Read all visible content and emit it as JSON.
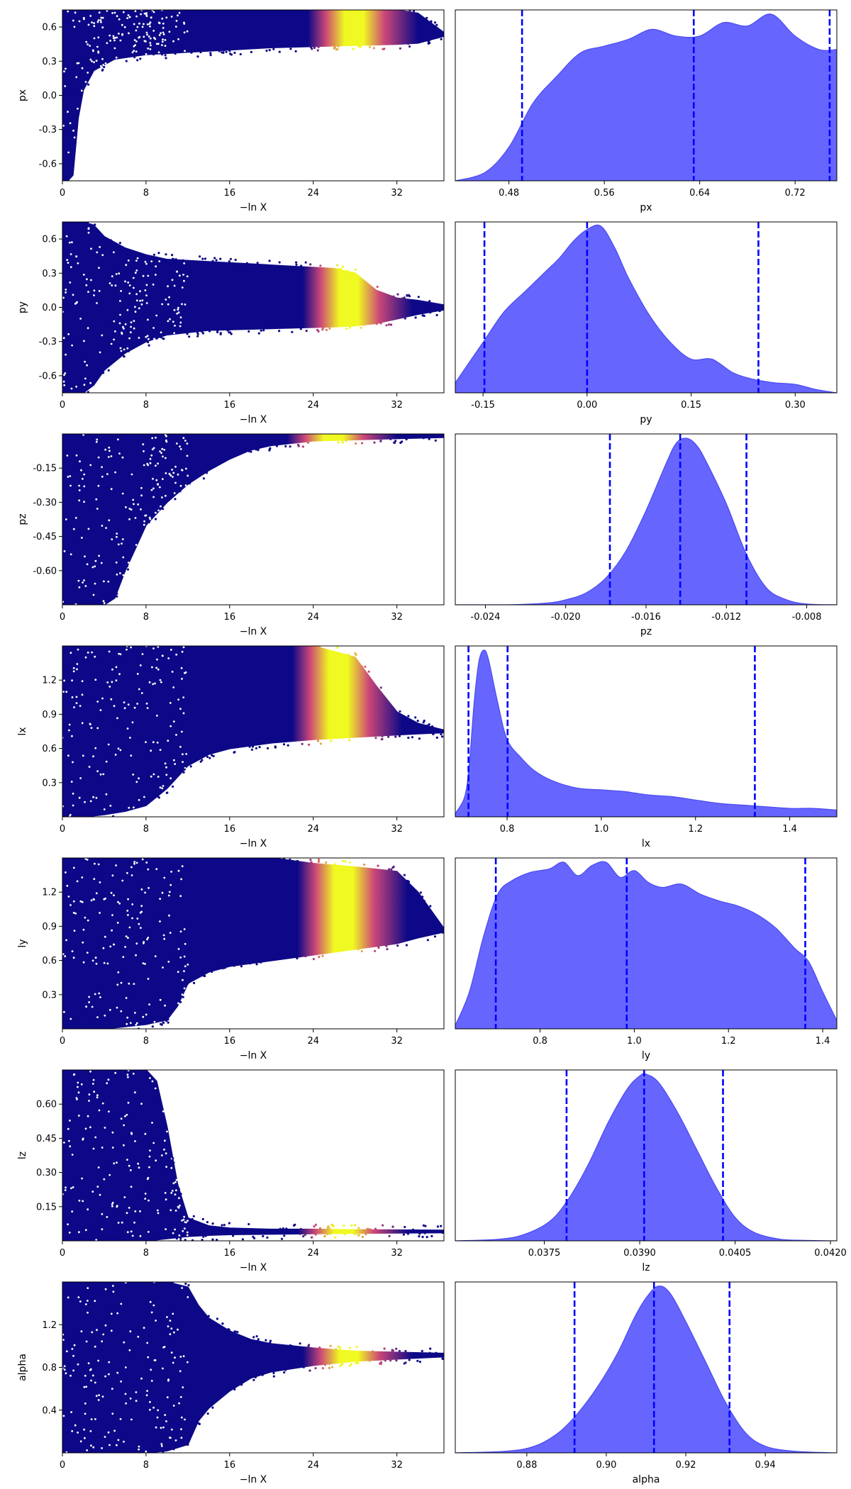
{
  "colors": {
    "trace_low": "#0d0887",
    "trace_mid": "#cc4778",
    "trace_high": "#f0f921",
    "density_fill": "#6666ff",
    "density_edge": "#4a4af0",
    "quantile_line": "#0000ff"
  },
  "chart_data": [
    {
      "type": "scatter",
      "panel": "trace",
      "xlabel": "−ln X",
      "ylabel": "px",
      "xlim": [
        0,
        36.5
      ],
      "ylim": [
        -0.75,
        0.75
      ],
      "xticks": [
        "0",
        "8",
        "16",
        "24",
        "32"
      ],
      "yticks": [
        "-0.6",
        "-0.3",
        "0.0",
        "0.3",
        "0.6"
      ],
      "envelope": {
        "lnx": [
          0,
          0.5,
          1,
          1.5,
          2,
          3,
          5,
          8,
          12,
          16,
          20,
          24,
          28,
          32,
          34,
          36.5
        ],
        "upper": [
          0.75,
          0.75,
          0.75,
          0.75,
          0.75,
          0.75,
          0.75,
          0.75,
          0.75,
          0.75,
          0.75,
          0.75,
          0.75,
          0.75,
          0.72,
          0.55
        ],
        "lower": [
          -0.75,
          -0.75,
          -0.7,
          -0.2,
          0.05,
          0.22,
          0.32,
          0.36,
          0.38,
          0.4,
          0.42,
          0.43,
          0.44,
          0.45,
          0.46,
          0.52
        ]
      },
      "peak_lnx": 28
    },
    {
      "type": "area",
      "panel": "marginal",
      "xlabel": "px",
      "xlim": [
        0.435,
        0.755
      ],
      "xticks": [
        "0.48",
        "0.56",
        "0.64",
        "0.72"
      ],
      "x": [
        0.435,
        0.46,
        0.48,
        0.5,
        0.52,
        0.54,
        0.56,
        0.58,
        0.6,
        0.62,
        0.64,
        0.66,
        0.68,
        0.7,
        0.72,
        0.74,
        0.755
      ],
      "density": [
        0.0,
        0.05,
        0.2,
        0.46,
        0.62,
        0.76,
        0.8,
        0.84,
        0.9,
        0.86,
        0.86,
        0.94,
        0.92,
        0.99,
        0.86,
        0.78,
        0.78
      ],
      "quantiles": [
        0.491,
        0.635,
        0.749
      ]
    },
    {
      "type": "scatter",
      "panel": "trace",
      "xlabel": "−ln X",
      "ylabel": "py",
      "xlim": [
        0,
        36.5
      ],
      "ylim": [
        -0.75,
        0.75
      ],
      "xticks": [
        "0",
        "8",
        "16",
        "24",
        "32"
      ],
      "yticks": [
        "-0.6",
        "-0.3",
        "0.0",
        "0.3",
        "0.6"
      ],
      "envelope": {
        "lnx": [
          0,
          1,
          2,
          3,
          4,
          6,
          8,
          10,
          14,
          18,
          22,
          26,
          28,
          30,
          32,
          34,
          36.5
        ],
        "upper": [
          0.75,
          0.75,
          0.75,
          0.72,
          0.62,
          0.52,
          0.46,
          0.42,
          0.4,
          0.38,
          0.36,
          0.34,
          0.3,
          0.15,
          0.08,
          0.06,
          0.02
        ],
        "lower": [
          -0.75,
          -0.75,
          -0.75,
          -0.68,
          -0.55,
          -0.4,
          -0.3,
          -0.24,
          -0.2,
          -0.19,
          -0.18,
          -0.17,
          -0.16,
          -0.14,
          -0.1,
          -0.06,
          -0.02
        ]
      },
      "peak_lnx": 27.5
    },
    {
      "type": "area",
      "panel": "marginal",
      "xlabel": "py",
      "xlim": [
        -0.19,
        0.36
      ],
      "xticks": [
        "-0.15",
        "0.00",
        "0.15",
        "0.30"
      ],
      "x": [
        -0.19,
        -0.15,
        -0.12,
        -0.09,
        -0.06,
        -0.04,
        -0.02,
        0.0,
        0.02,
        0.04,
        0.06,
        0.09,
        0.12,
        0.15,
        0.18,
        0.21,
        0.24,
        0.27,
        0.3,
        0.33,
        0.36
      ],
      "density": [
        0.06,
        0.3,
        0.48,
        0.6,
        0.72,
        0.8,
        0.9,
        0.97,
        0.99,
        0.86,
        0.68,
        0.46,
        0.3,
        0.2,
        0.2,
        0.12,
        0.08,
        0.06,
        0.05,
        0.02,
        0.0
      ],
      "quantiles": [
        -0.148,
        0.0,
        0.247
      ]
    },
    {
      "type": "scatter",
      "panel": "trace",
      "xlabel": "−ln X",
      "ylabel": "pz",
      "xlim": [
        0,
        36.5
      ],
      "ylim": [
        -0.75,
        0.0
      ],
      "xticks": [
        "0",
        "8",
        "16",
        "24",
        "32"
      ],
      "yticks": [
        "-0.60",
        "-0.45",
        "-0.30",
        "-0.15"
      ],
      "envelope": {
        "lnx": [
          0,
          2,
          4,
          5,
          6,
          7,
          8,
          10,
          12,
          14,
          16,
          18,
          20,
          24,
          28,
          32,
          36.5
        ],
        "upper": [
          0.0,
          0.0,
          0.0,
          0.0,
          0.0,
          0.0,
          0.0,
          0.0,
          0.0,
          0.0,
          0.0,
          0.0,
          0.0,
          0.0,
          0.0,
          0.0,
          0.0
        ],
        "lower": [
          -0.75,
          -0.75,
          -0.75,
          -0.72,
          -0.6,
          -0.5,
          -0.4,
          -0.3,
          -0.22,
          -0.16,
          -0.11,
          -0.07,
          -0.05,
          -0.03,
          -0.025,
          -0.02,
          -0.015
        ]
      },
      "peak_lnx": 26
    },
    {
      "type": "area",
      "panel": "marginal",
      "xlabel": "pz",
      "xlim": [
        -0.0255,
        -0.0065
      ],
      "xticks": [
        "-0.024",
        "-0.020",
        "-0.016",
        "-0.012",
        "-0.008"
      ],
      "x": [
        -0.0255,
        -0.023,
        -0.021,
        -0.02,
        -0.019,
        -0.018,
        -0.017,
        -0.016,
        -0.015,
        -0.0145,
        -0.014,
        -0.0135,
        -0.013,
        -0.012,
        -0.011,
        -0.01,
        -0.009,
        -0.008,
        -0.0065
      ],
      "density": [
        0.0,
        0.0,
        0.01,
        0.03,
        0.07,
        0.16,
        0.32,
        0.56,
        0.84,
        0.96,
        0.99,
        0.95,
        0.85,
        0.6,
        0.3,
        0.1,
        0.03,
        0.005,
        0.0
      ],
      "quantiles": [
        -0.0178,
        -0.0143,
        -0.011
      ]
    },
    {
      "type": "scatter",
      "panel": "trace",
      "xlabel": "−ln X",
      "ylabel": "lx",
      "xlim": [
        0,
        36.5
      ],
      "ylim": [
        0.0,
        1.5
      ],
      "xticks": [
        "0",
        "8",
        "16",
        "24",
        "32"
      ],
      "yticks": [
        "0.3",
        "0.6",
        "0.9",
        "1.2"
      ],
      "envelope": {
        "lnx": [
          0,
          2,
          4,
          6,
          8,
          10,
          12,
          14,
          16,
          20,
          24,
          28,
          30,
          32,
          34,
          36.5
        ],
        "upper": [
          1.5,
          1.5,
          1.5,
          1.5,
          1.5,
          1.5,
          1.5,
          1.5,
          1.5,
          1.5,
          1.5,
          1.4,
          1.15,
          0.92,
          0.82,
          0.76
        ],
        "lower": [
          0.0,
          0.0,
          0.02,
          0.05,
          0.1,
          0.25,
          0.45,
          0.55,
          0.6,
          0.65,
          0.68,
          0.7,
          0.71,
          0.72,
          0.73,
          0.74
        ]
      },
      "peak_lnx": 26.5
    },
    {
      "type": "area",
      "panel": "marginal",
      "xlabel": "lx",
      "xlim": [
        0.69,
        1.5
      ],
      "xticks": [
        "0.8",
        "1.0",
        "1.2",
        "1.4"
      ],
      "x": [
        0.69,
        0.71,
        0.72,
        0.73,
        0.74,
        0.75,
        0.76,
        0.78,
        0.8,
        0.83,
        0.86,
        0.9,
        0.95,
        1.0,
        1.05,
        1.1,
        1.15,
        1.2,
        1.25,
        1.3,
        1.35,
        1.4,
        1.45,
        1.5
      ],
      "density": [
        0.02,
        0.12,
        0.32,
        0.68,
        0.92,
        0.99,
        0.94,
        0.68,
        0.46,
        0.35,
        0.27,
        0.21,
        0.17,
        0.16,
        0.15,
        0.13,
        0.12,
        0.1,
        0.08,
        0.07,
        0.06,
        0.05,
        0.05,
        0.04
      ],
      "quantiles": [
        0.718,
        0.801,
        1.326
      ]
    },
    {
      "type": "scatter",
      "panel": "trace",
      "xlabel": "−ln X",
      "ylabel": "ly",
      "xlim": [
        0,
        36.5
      ],
      "ylim": [
        0.0,
        1.5
      ],
      "xticks": [
        "0",
        "8",
        "16",
        "24",
        "32"
      ],
      "yticks": [
        "0.3",
        "0.6",
        "0.9",
        "1.2"
      ],
      "envelope": {
        "lnx": [
          0,
          2,
          4,
          6,
          8,
          10,
          11,
          12,
          14,
          16,
          20,
          24,
          28,
          32,
          34,
          36.5
        ],
        "upper": [
          1.5,
          1.5,
          1.5,
          1.5,
          1.5,
          1.5,
          1.5,
          1.5,
          1.5,
          1.5,
          1.5,
          1.45,
          1.42,
          1.38,
          1.2,
          0.88
        ],
        "lower": [
          0.0,
          0.0,
          0.0,
          0.02,
          0.04,
          0.08,
          0.2,
          0.4,
          0.5,
          0.55,
          0.6,
          0.65,
          0.7,
          0.75,
          0.8,
          0.85
        ]
      },
      "peak_lnx": 27
    },
    {
      "type": "area",
      "panel": "marginal",
      "xlabel": "ly",
      "xlim": [
        0.62,
        1.43
      ],
      "xticks": [
        "0.8",
        "1.0",
        "1.2",
        "1.4"
      ],
      "x": [
        0.62,
        0.65,
        0.68,
        0.71,
        0.74,
        0.78,
        0.82,
        0.85,
        0.88,
        0.91,
        0.94,
        0.97,
        1.0,
        1.03,
        1.06,
        1.1,
        1.14,
        1.18,
        1.22,
        1.26,
        1.3,
        1.34,
        1.37,
        1.4,
        1.43
      ],
      "density": [
        0.02,
        0.22,
        0.55,
        0.8,
        0.88,
        0.93,
        0.95,
        0.99,
        0.91,
        0.97,
        0.99,
        0.9,
        0.94,
        0.87,
        0.84,
        0.86,
        0.8,
        0.76,
        0.73,
        0.68,
        0.6,
        0.48,
        0.4,
        0.22,
        0.05
      ],
      "quantiles": [
        0.706,
        0.984,
        1.363
      ]
    },
    {
      "type": "scatter",
      "panel": "trace",
      "xlabel": "−ln X",
      "ylabel": "lz",
      "xlim": [
        0,
        36.5
      ],
      "ylim": [
        0.0,
        0.75
      ],
      "xticks": [
        "0",
        "8",
        "16",
        "24",
        "32"
      ],
      "yticks": [
        "0.15",
        "0.30",
        "0.45",
        "0.60"
      ],
      "envelope": {
        "lnx": [
          0,
          2,
          4,
          6,
          8,
          9,
          10,
          11,
          12,
          14,
          16,
          20,
          24,
          28,
          32,
          36.5
        ],
        "upper": [
          0.75,
          0.75,
          0.75,
          0.75,
          0.75,
          0.7,
          0.5,
          0.25,
          0.1,
          0.065,
          0.055,
          0.05,
          0.05,
          0.048,
          0.047,
          0.046
        ],
        "lower": [
          0.0,
          0.0,
          0.0,
          0.0,
          0.0,
          0.005,
          0.01,
          0.015,
          0.02,
          0.025,
          0.028,
          0.03,
          0.032,
          0.034,
          0.035,
          0.036
        ]
      },
      "peak_lnx": 27
    },
    {
      "type": "area",
      "panel": "marginal",
      "xlabel": "lz",
      "xlim": [
        0.0361,
        0.0421
      ],
      "xticks": [
        "0.0375",
        "0.0390",
        "0.0405",
        "0.0420"
      ],
      "x": [
        0.0361,
        0.0368,
        0.0372,
        0.0376,
        0.0379,
        0.0382,
        0.0385,
        0.0388,
        0.039,
        0.0391,
        0.0393,
        0.0396,
        0.0399,
        0.0402,
        0.0405,
        0.0408,
        0.0412,
        0.0416,
        0.0421
      ],
      "density": [
        0.0,
        0.01,
        0.04,
        0.12,
        0.26,
        0.46,
        0.7,
        0.9,
        0.98,
        0.99,
        0.94,
        0.76,
        0.54,
        0.32,
        0.14,
        0.05,
        0.01,
        0.003,
        0.0
      ],
      "quantiles": [
        0.03785,
        0.03907,
        0.04031
      ]
    },
    {
      "type": "scatter",
      "panel": "trace",
      "xlabel": "−ln X",
      "ylabel": "alpha",
      "xlim": [
        0,
        36.5
      ],
      "ylim": [
        0.0,
        1.6
      ],
      "xticks": [
        "0",
        "8",
        "16",
        "24",
        "32"
      ],
      "yticks": [
        "0.4",
        "0.8",
        "1.2"
      ],
      "envelope": {
        "lnx": [
          0,
          4,
          8,
          10,
          12,
          13,
          14,
          16,
          18,
          20,
          24,
          28,
          32,
          36.5
        ],
        "upper": [
          1.6,
          1.6,
          1.6,
          1.6,
          1.55,
          1.38,
          1.26,
          1.14,
          1.06,
          1.02,
          0.98,
          0.95,
          0.94,
          0.93
        ],
        "lower": [
          0.0,
          0.0,
          0.0,
          0.02,
          0.08,
          0.3,
          0.42,
          0.58,
          0.7,
          0.76,
          0.82,
          0.86,
          0.88,
          0.9
        ]
      },
      "peak_lnx": 27.5
    },
    {
      "type": "area",
      "panel": "marginal",
      "xlabel": "alpha",
      "xlim": [
        0.862,
        0.958
      ],
      "xticks": [
        "0.88",
        "0.90",
        "0.92",
        "0.94"
      ],
      "x": [
        0.862,
        0.875,
        0.882,
        0.888,
        0.893,
        0.898,
        0.903,
        0.907,
        0.91,
        0.913,
        0.916,
        0.92,
        0.925,
        0.93,
        0.935,
        0.94,
        0.947,
        0.958
      ],
      "density": [
        0.0,
        0.01,
        0.04,
        0.12,
        0.24,
        0.4,
        0.6,
        0.8,
        0.92,
        0.99,
        0.95,
        0.78,
        0.54,
        0.3,
        0.12,
        0.04,
        0.01,
        0.0
      ],
      "quantiles": [
        0.892,
        0.912,
        0.931
      ]
    }
  ]
}
